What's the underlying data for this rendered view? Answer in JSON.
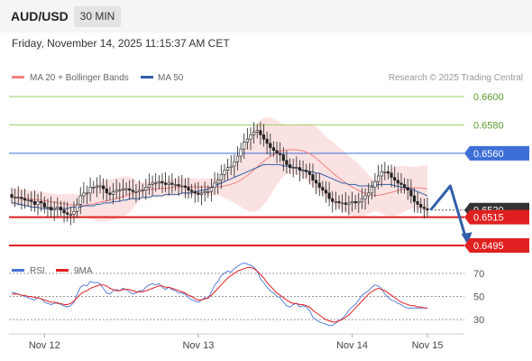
{
  "header": {
    "symbol": "AUD/USD",
    "timeframe": "30 MIN",
    "datetime": "Friday, November 14, 2025 11:15:37 AM CET"
  },
  "legend": {
    "ma20": "MA 20 + Bollinger Bands",
    "ma50": "MA 50",
    "ma20_color": "#f08080",
    "ma50_color": "#2f5fa8",
    "credit": "Research © 2025 Trading Central"
  },
  "rsi_legend": {
    "rsi": "RSI",
    "ma9": "9MA",
    "rsi_color": "#4a72d8",
    "ma9_color": "#e02020"
  },
  "chart_data": {
    "type": "candlestick",
    "price_axis": {
      "min": 0.649,
      "max": 0.6605
    },
    "levels": [
      {
        "label": "0.6600",
        "value": 0.66,
        "kind": "resistance-2",
        "color": "#9ccc65"
      },
      {
        "label": "0.6580",
        "value": 0.658,
        "kind": "resistance-1",
        "color": "#9ccc65"
      },
      {
        "label": "0.6560",
        "value": 0.656,
        "kind": "pivot",
        "color": "#3d6fd6"
      },
      {
        "label": "0.6520",
        "value": 0.652,
        "kind": "last-price",
        "color": "#333333"
      },
      {
        "label": "0.6515",
        "value": 0.6515,
        "kind": "support-1",
        "color": "#e02020"
      },
      {
        "label": "0.6495",
        "value": 0.6495,
        "kind": "support-2",
        "color": "#e02020"
      }
    ],
    "x_labels": [
      "Nov 12",
      "Nov 13",
      "Nov 14",
      "Nov 15"
    ],
    "x_label_index": [
      10,
      57,
      104,
      127
    ],
    "bar_count": 128,
    "close": [
      0.6529,
      0.6529,
      0.6529,
      0.6528,
      0.6527,
      0.6527,
      0.6526,
      0.6524,
      0.6526,
      0.6525,
      0.6522,
      0.6522,
      0.652,
      0.6521,
      0.6522,
      0.652,
      0.6518,
      0.6517,
      0.6517,
      0.6519,
      0.6524,
      0.653,
      0.6532,
      0.6532,
      0.6536,
      0.6536,
      0.6537,
      0.6537,
      0.6535,
      0.6532,
      0.6531,
      0.6533,
      0.6534,
      0.6534,
      0.6535,
      0.6535,
      0.6534,
      0.6533,
      0.6533,
      0.6534,
      0.6534,
      0.6536,
      0.6538,
      0.6539,
      0.6539,
      0.654,
      0.6539,
      0.6538,
      0.6539,
      0.6538,
      0.6538,
      0.6537,
      0.6537,
      0.6536,
      0.6534,
      0.6533,
      0.6532,
      0.6531,
      0.6532,
      0.6533,
      0.6533,
      0.6536,
      0.6539,
      0.6541,
      0.6545,
      0.6548,
      0.655,
      0.6551,
      0.6554,
      0.6558,
      0.6563,
      0.6568,
      0.657,
      0.6573,
      0.6575,
      0.6576,
      0.6573,
      0.657,
      0.6567,
      0.6564,
      0.6562,
      0.656,
      0.6559,
      0.6555,
      0.6552,
      0.655,
      0.655,
      0.655,
      0.6548,
      0.6548,
      0.6547,
      0.6545,
      0.6541,
      0.6539,
      0.6536,
      0.6534,
      0.6532,
      0.6528,
      0.6526,
      0.6526,
      0.6525,
      0.6525,
      0.6524,
      0.6525,
      0.6526,
      0.6525,
      0.6526,
      0.6528,
      0.653,
      0.6532,
      0.6536,
      0.654,
      0.6544,
      0.6547,
      0.6547,
      0.6546,
      0.6543,
      0.6541,
      0.6539,
      0.6538,
      0.6536,
      0.6534,
      0.653,
      0.6526,
      0.6524,
      0.6522,
      0.6521,
      0.652
    ],
    "ma50": [
      0.6525,
      0.6525,
      0.6524,
      0.6524,
      0.6523,
      0.6523,
      0.6522,
      0.6522,
      0.6522,
      0.6521,
      0.6521,
      0.6521,
      0.6521,
      0.6521,
      0.6521,
      0.6521,
      0.6521,
      0.6521,
      0.6522,
      0.6522,
      0.6522,
      0.6522,
      0.6523,
      0.6523,
      0.6523,
      0.6523,
      0.6524,
      0.6524,
      0.6525,
      0.6525,
      0.6525,
      0.6526,
      0.6526,
      0.6526,
      0.6527,
      0.6527,
      0.6528,
      0.6528,
      0.6528,
      0.6528,
      0.6529,
      0.6529,
      0.6529,
      0.653,
      0.653,
      0.653,
      0.653,
      0.6531,
      0.6531,
      0.6531,
      0.6531,
      0.6531,
      0.6532,
      0.6532,
      0.6532,
      0.6532,
      0.6533,
      0.6533,
      0.6534,
      0.6534,
      0.6535,
      0.6536,
      0.6537,
      0.6538,
      0.6539,
      0.654,
      0.6541,
      0.6542,
      0.6543,
      0.6544,
      0.6545,
      0.6546,
      0.6547,
      0.6548,
      0.6549,
      0.655,
      0.6551,
      0.6552,
      0.6552,
      0.6552,
      0.6552,
      0.6552,
      0.6552,
      0.6551,
      0.6551,
      0.6551,
      0.655,
      0.655,
      0.6549,
      0.6548,
      0.6548,
      0.6547,
      0.6547,
      0.6546,
      0.6546,
      0.6545,
      0.6544,
      0.6543,
      0.6542,
      0.6541,
      0.654,
      0.6539,
      0.6539,
      0.6538,
      0.6538,
      0.6538,
      0.6537,
      0.6537,
      0.6537,
      0.6537,
      0.6537,
      0.6537,
      0.6538,
      0.6538,
      0.6538,
      0.6538,
      0.6538,
      0.6537,
      0.6537,
      0.6536,
      0.6536,
      0.6535,
      0.6535,
      0.6534,
      0.6533,
      0.6532,
      0.6531,
      0.653
    ],
    "forecast": [
      {
        "bar": 128,
        "value": 0.652
      },
      {
        "bar": 134,
        "value": 0.6537
      },
      {
        "bar": 139,
        "value": 0.6498
      }
    ],
    "rsi_axis": {
      "min": 20,
      "max": 80,
      "ticks": [
        30,
        50,
        70
      ]
    },
    "rsi_ticks": [
      "30",
      "50",
      "70"
    ],
    "rsi": [
      54,
      53,
      52,
      51,
      50,
      49,
      48,
      47,
      49,
      48,
      45,
      44,
      43,
      44,
      45,
      43,
      42,
      41,
      42,
      45,
      52,
      58,
      60,
      59,
      63,
      62,
      62,
      61,
      57,
      53,
      52,
      55,
      56,
      55,
      57,
      56,
      54,
      52,
      53,
      55,
      55,
      58,
      60,
      61,
      60,
      61,
      58,
      56,
      58,
      56,
      55,
      53,
      53,
      52,
      49,
      47,
      46,
      45,
      47,
      49,
      48,
      54,
      60,
      63,
      68,
      70,
      72,
      71,
      74,
      76,
      78,
      79,
      78,
      77,
      75,
      72,
      65,
      62,
      58,
      55,
      53,
      50,
      49,
      45,
      42,
      41,
      43,
      44,
      41,
      42,
      41,
      38,
      32,
      30,
      28,
      27,
      26,
      25,
      25,
      27,
      29,
      31,
      34,
      38,
      41,
      43,
      47,
      51,
      53,
      55,
      58,
      60,
      59,
      57,
      52,
      49,
      47,
      46,
      44,
      43,
      41,
      40,
      40,
      40,
      40,
      40,
      40,
      40
    ],
    "rsi_ma9": [
      52,
      52,
      52,
      51,
      51,
      50,
      50,
      49,
      49,
      48,
      47,
      46,
      45,
      45,
      44,
      44,
      43,
      43,
      44,
      46,
      49,
      52,
      54,
      55,
      57,
      58,
      59,
      60,
      60,
      59,
      57,
      56,
      55,
      55,
      56,
      56,
      56,
      55,
      54,
      54,
      54,
      55,
      56,
      57,
      58,
      59,
      59,
      58,
      58,
      57,
      56,
      55,
      54,
      53,
      51,
      50,
      48,
      47,
      47,
      48,
      49,
      51,
      54,
      57,
      60,
      63,
      66,
      68,
      70,
      72,
      73,
      74,
      75,
      75,
      74,
      72,
      69,
      66,
      62,
      59,
      56,
      53,
      51,
      49,
      47,
      45,
      44,
      44,
      43,
      43,
      42,
      41,
      38,
      36,
      34,
      32,
      30,
      29,
      28,
      28,
      29,
      30,
      32,
      34,
      37,
      40,
      43,
      46,
      49,
      52,
      54,
      56,
      57,
      56,
      55,
      53,
      51,
      49,
      47,
      45,
      44,
      43,
      42,
      42,
      41,
      41,
      40,
      40
    ]
  }
}
